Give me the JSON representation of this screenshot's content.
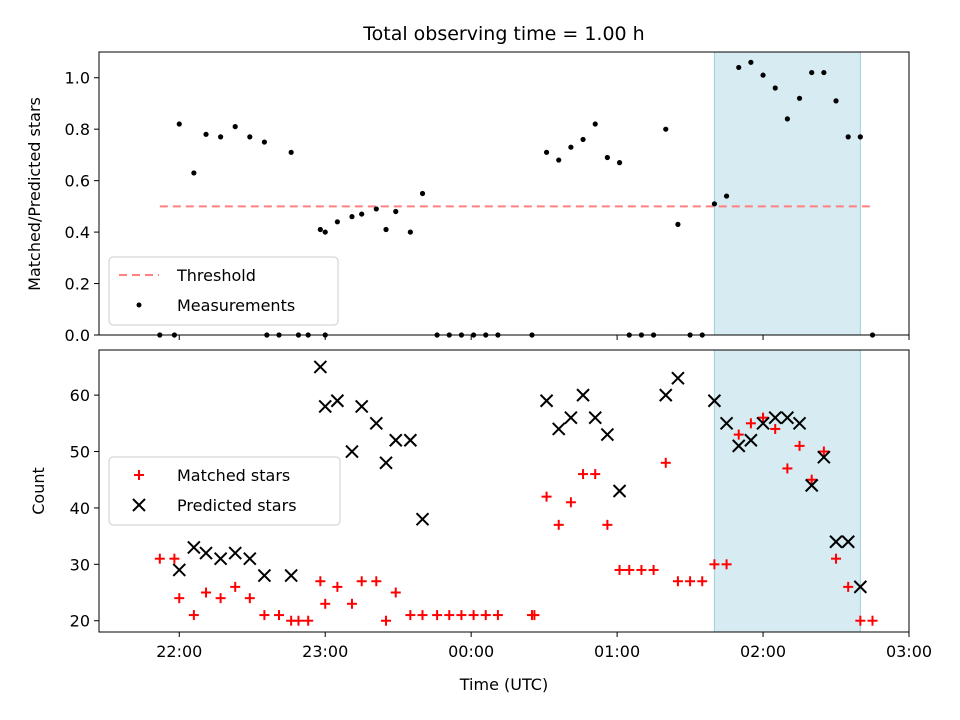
{
  "chart_data": [
    {
      "type": "scatter",
      "title": "Total observing time = 1.00 h",
      "ylabel": "Matched/Predicted stars",
      "xlim": [
        "21:27",
        "03:00"
      ],
      "ylim": [
        0,
        1.1
      ],
      "yticks": [
        0.0,
        0.2,
        0.4,
        0.6,
        0.8,
        1.0
      ],
      "ytick_labels": [
        "0.0",
        "0.2",
        "0.4",
        "0.6",
        "0.8",
        "1.0"
      ],
      "legend_position": "lower-left",
      "shaded_region": {
        "x": [
          "01:40",
          "02:40"
        ],
        "color": "#add8e6"
      },
      "threshold": {
        "name": "Threshold",
        "y": 0.5,
        "x": [
          "21:52",
          "02:45"
        ],
        "color": "#ff8080"
      },
      "series": [
        {
          "name": "Measurements",
          "color": "#000000",
          "points": [
            [
              "21:52",
              0.0
            ],
            [
              "21:58",
              0.0
            ],
            [
              "22:00",
              0.82
            ],
            [
              "22:06",
              0.63
            ],
            [
              "22:11",
              0.78
            ],
            [
              "22:17",
              0.77
            ],
            [
              "22:23",
              0.81
            ],
            [
              "22:29",
              0.77
            ],
            [
              "22:35",
              0.75
            ],
            [
              "22:36",
              0.0
            ],
            [
              "22:41",
              0.0
            ],
            [
              "22:46",
              0.71
            ],
            [
              "22:49",
              0.0
            ],
            [
              "22:53",
              0.0
            ],
            [
              "22:58",
              0.41
            ],
            [
              "23:00",
              0.0
            ],
            [
              "23:00",
              0.4
            ],
            [
              "23:05",
              0.44
            ],
            [
              "23:11",
              0.46
            ],
            [
              "23:15",
              0.47
            ],
            [
              "23:21",
              0.49
            ],
            [
              "23:25",
              0.41
            ],
            [
              "23:29",
              0.48
            ],
            [
              "23:35",
              0.4
            ],
            [
              "23:40",
              0.55
            ],
            [
              "23:46",
              0.0
            ],
            [
              "23:51",
              0.0
            ],
            [
              "23:56",
              0.0
            ],
            [
              "00:01",
              0.0
            ],
            [
              "00:06",
              0.0
            ],
            [
              "00:11",
              0.0
            ],
            [
              "00:25",
              0.0
            ],
            [
              "00:31",
              0.71
            ],
            [
              "00:36",
              0.68
            ],
            [
              "00:41",
              0.73
            ],
            [
              "00:46",
              0.76
            ],
            [
              "00:51",
              0.82
            ],
            [
              "00:56",
              0.69
            ],
            [
              "01:01",
              0.67
            ],
            [
              "01:05",
              0.0
            ],
            [
              "01:10",
              0.0
            ],
            [
              "01:15",
              0.0
            ],
            [
              "01:20",
              0.8
            ],
            [
              "01:25",
              0.43
            ],
            [
              "01:30",
              0.0
            ],
            [
              "01:35",
              0.0
            ],
            [
              "01:40",
              0.51
            ],
            [
              "01:45",
              0.54
            ],
            [
              "01:50",
              1.04
            ],
            [
              "01:55",
              1.06
            ],
            [
              "02:00",
              1.01
            ],
            [
              "02:05",
              0.96
            ],
            [
              "02:10",
              0.84
            ],
            [
              "02:15",
              0.92
            ],
            [
              "02:20",
              1.02
            ],
            [
              "02:25",
              1.02
            ],
            [
              "02:30",
              0.91
            ],
            [
              "02:35",
              0.77
            ],
            [
              "02:40",
              0.77
            ],
            [
              "02:45",
              0.0
            ]
          ]
        }
      ],
      "legend": [
        "Threshold",
        "Measurements"
      ]
    },
    {
      "type": "scatter",
      "ylabel": "Count",
      "xlabel": "Time (UTC)",
      "xlim": [
        "21:27",
        "03:00"
      ],
      "ylim": [
        18,
        68
      ],
      "yticks": [
        20,
        30,
        40,
        50,
        60
      ],
      "ytick_labels": [
        "20",
        "30",
        "40",
        "50",
        "60"
      ],
      "xticks": [
        "22:00",
        "23:00",
        "00:00",
        "01:00",
        "02:00",
        "03:00"
      ],
      "xtick_labels": [
        "22:00",
        "23:00",
        "00:00",
        "01:00",
        "02:00",
        "03:00"
      ],
      "legend_position": "center-left",
      "shaded_region": {
        "x": [
          "01:40",
          "02:40"
        ],
        "color": "#add8e6"
      },
      "series": [
        {
          "name": "Matched stars",
          "marker": "plus",
          "color": "#ff0000",
          "points": [
            [
              "21:52",
              31
            ],
            [
              "21:58",
              31
            ],
            [
              "22:00",
              24
            ],
            [
              "22:06",
              21
            ],
            [
              "22:11",
              25
            ],
            [
              "22:17",
              24
            ],
            [
              "22:23",
              26
            ],
            [
              "22:29",
              24
            ],
            [
              "22:35",
              21
            ],
            [
              "22:41",
              21
            ],
            [
              "22:46",
              20
            ],
            [
              "22:49",
              20
            ],
            [
              "22:53",
              20
            ],
            [
              "22:58",
              27
            ],
            [
              "23:00",
              23
            ],
            [
              "23:05",
              26
            ],
            [
              "23:11",
              23
            ],
            [
              "23:15",
              27
            ],
            [
              "23:21",
              27
            ],
            [
              "23:25",
              20
            ],
            [
              "23:29",
              25
            ],
            [
              "23:35",
              21
            ],
            [
              "23:40",
              21
            ],
            [
              "23:46",
              21
            ],
            [
              "23:51",
              21
            ],
            [
              "23:56",
              21
            ],
            [
              "00:01",
              21
            ],
            [
              "00:06",
              21
            ],
            [
              "00:11",
              21
            ],
            [
              "00:25",
              21
            ],
            [
              "00:26",
              21
            ],
            [
              "00:31",
              42
            ],
            [
              "00:36",
              37
            ],
            [
              "00:41",
              41
            ],
            [
              "00:46",
              46
            ],
            [
              "00:51",
              46
            ],
            [
              "00:56",
              37
            ],
            [
              "01:01",
              29
            ],
            [
              "01:05",
              29
            ],
            [
              "01:10",
              29
            ],
            [
              "01:15",
              29
            ],
            [
              "01:20",
              48
            ],
            [
              "01:25",
              27
            ],
            [
              "01:30",
              27
            ],
            [
              "01:35",
              27
            ],
            [
              "01:40",
              30
            ],
            [
              "01:45",
              30
            ],
            [
              "01:50",
              53
            ],
            [
              "01:55",
              55
            ],
            [
              "02:00",
              56
            ],
            [
              "02:05",
              54
            ],
            [
              "02:10",
              47
            ],
            [
              "02:15",
              51
            ],
            [
              "02:20",
              45
            ],
            [
              "02:25",
              50
            ],
            [
              "02:30",
              31
            ],
            [
              "02:35",
              26
            ],
            [
              "02:40",
              20
            ],
            [
              "02:45",
              20
            ]
          ]
        },
        {
          "name": "Predicted stars",
          "marker": "x",
          "color": "#000000",
          "points": [
            [
              "22:00",
              29
            ],
            [
              "22:06",
              33
            ],
            [
              "22:11",
              32
            ],
            [
              "22:17",
              31
            ],
            [
              "22:23",
              32
            ],
            [
              "22:29",
              31
            ],
            [
              "22:35",
              28
            ],
            [
              "22:46",
              28
            ],
            [
              "22:58",
              65
            ],
            [
              "23:00",
              58
            ],
            [
              "23:05",
              59
            ],
            [
              "23:11",
              50
            ],
            [
              "23:15",
              58
            ],
            [
              "23:21",
              55
            ],
            [
              "23:25",
              48
            ],
            [
              "23:29",
              52
            ],
            [
              "23:35",
              52
            ],
            [
              "23:40",
              38
            ],
            [
              "00:31",
              59
            ],
            [
              "00:36",
              54
            ],
            [
              "00:41",
              56
            ],
            [
              "00:46",
              60
            ],
            [
              "00:51",
              56
            ],
            [
              "00:56",
              53
            ],
            [
              "01:01",
              43
            ],
            [
              "01:20",
              60
            ],
            [
              "01:25",
              63
            ],
            [
              "01:40",
              59
            ],
            [
              "01:45",
              55
            ],
            [
              "01:50",
              51
            ],
            [
              "01:55",
              52
            ],
            [
              "02:00",
              55
            ],
            [
              "02:05",
              56
            ],
            [
              "02:10",
              56
            ],
            [
              "02:15",
              55
            ],
            [
              "02:20",
              44
            ],
            [
              "02:25",
              49
            ],
            [
              "02:30",
              34
            ],
            [
              "02:35",
              34
            ],
            [
              "02:40",
              26
            ]
          ]
        }
      ],
      "legend": [
        "Matched stars",
        "Predicted stars"
      ]
    }
  ]
}
